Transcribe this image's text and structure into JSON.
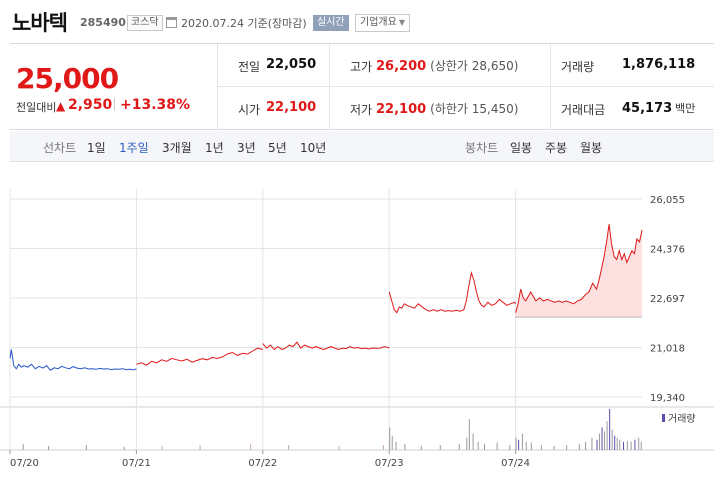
{
  "header": {
    "stock_name": "노바텍",
    "stock_code": "285490",
    "market_badge": "코스닥",
    "date_text": "2020.07.24 기준(장마감)",
    "realtime_label": "실시간",
    "overview_label": "기업개요"
  },
  "summary": {
    "current_price": "25,000",
    "change_label": "전일대비",
    "change_arrow": "▲",
    "change_amount": "2,950",
    "change_pct": "+13.38%",
    "prev_close_label": "전일",
    "prev_close": "22,050",
    "open_label": "시가",
    "open": "22,100",
    "high_label": "고가",
    "high": "26,200",
    "upper_limit": "(상한가 28,650)",
    "low_label": "저가",
    "low": "22,100",
    "lower_limit": "(하한가 15,450)",
    "volume_label": "거래량",
    "volume": "1,876,118",
    "trade_value_label": "거래대금",
    "trade_value": "45,173",
    "trade_value_unit": "백만"
  },
  "tabs": {
    "line_label": "선차트",
    "line_items": [
      "1일",
      "1주일",
      "3개월",
      "1년",
      "3년",
      "5년",
      "10년"
    ],
    "active_line": "1주일",
    "candle_label": "봉차트",
    "candle_items": [
      "일봉",
      "주봉",
      "월봉"
    ]
  },
  "colors": {
    "up": "#e01818",
    "down": "#2456c8",
    "fill": "#fde0e0",
    "volume_up": "#c9a4b9",
    "volume_bar": "#9a9aa0",
    "volume_accent": "#5a4fb0"
  },
  "chart_data": {
    "type": "line",
    "title": "",
    "ylim": [
      19340,
      26055
    ],
    "y_ticks": [
      "26,055",
      "24,376",
      "22,697",
      "21,018",
      "19,340"
    ],
    "y_tick_values": [
      26055,
      24376,
      22697,
      21018,
      19340
    ],
    "x_ticks": [
      "07/20",
      "07/21",
      "07/22",
      "07/23",
      "07/24"
    ],
    "x_range": [
      0,
      5
    ],
    "prev_close": 22050,
    "volume_label": "거래량",
    "grid": true,
    "series": [
      {
        "segment": "07/20",
        "color": "#2456c8",
        "points": [
          [
            0.0,
            20650
          ],
          [
            0.01,
            20950
          ],
          [
            0.03,
            20400
          ],
          [
            0.05,
            20300
          ],
          [
            0.07,
            20450
          ],
          [
            0.09,
            20350
          ],
          [
            0.11,
            20400
          ],
          [
            0.14,
            20350
          ],
          [
            0.17,
            20450
          ],
          [
            0.2,
            20300
          ],
          [
            0.23,
            20380
          ],
          [
            0.26,
            20320
          ],
          [
            0.29,
            20400
          ],
          [
            0.32,
            20250
          ],
          [
            0.35,
            20330
          ],
          [
            0.38,
            20300
          ],
          [
            0.41,
            20380
          ],
          [
            0.44,
            20330
          ],
          [
            0.47,
            20300
          ],
          [
            0.5,
            20370
          ],
          [
            0.53,
            20320
          ],
          [
            0.56,
            20300
          ],
          [
            0.59,
            20330
          ],
          [
            0.62,
            20290
          ],
          [
            0.65,
            20300
          ],
          [
            0.68,
            20280
          ],
          [
            0.71,
            20310
          ],
          [
            0.74,
            20290
          ],
          [
            0.77,
            20300
          ],
          [
            0.8,
            20270
          ],
          [
            0.83,
            20290
          ],
          [
            0.86,
            20280
          ],
          [
            0.89,
            20300
          ],
          [
            0.92,
            20270
          ],
          [
            0.95,
            20280
          ],
          [
            0.98,
            20260
          ],
          [
            1.0,
            20300
          ]
        ]
      },
      {
        "segment": "07/21",
        "color": "#e01818",
        "points": [
          [
            1.0,
            20450
          ],
          [
            1.04,
            20500
          ],
          [
            1.08,
            20420
          ],
          [
            1.12,
            20550
          ],
          [
            1.16,
            20500
          ],
          [
            1.2,
            20600
          ],
          [
            1.24,
            20550
          ],
          [
            1.28,
            20650
          ],
          [
            1.32,
            20600
          ],
          [
            1.36,
            20560
          ],
          [
            1.4,
            20620
          ],
          [
            1.44,
            20520
          ],
          [
            1.48,
            20580
          ],
          [
            1.52,
            20640
          ],
          [
            1.56,
            20600
          ],
          [
            1.6,
            20680
          ],
          [
            1.64,
            20650
          ],
          [
            1.68,
            20700
          ],
          [
            1.72,
            20800
          ],
          [
            1.76,
            20850
          ],
          [
            1.8,
            20750
          ],
          [
            1.84,
            20820
          ],
          [
            1.88,
            20800
          ],
          [
            1.92,
            20900
          ],
          [
            1.96,
            21000
          ],
          [
            2.0,
            20950
          ]
        ]
      },
      {
        "segment": "07/22",
        "color": "#e01818",
        "points": [
          [
            2.0,
            21150
          ],
          [
            2.03,
            21000
          ],
          [
            2.06,
            21100
          ],
          [
            2.09,
            20950
          ],
          [
            2.12,
            21050
          ],
          [
            2.15,
            20950
          ],
          [
            2.18,
            21000
          ],
          [
            2.21,
            21100
          ],
          [
            2.24,
            21050
          ],
          [
            2.27,
            21200
          ],
          [
            2.3,
            21000
          ],
          [
            2.33,
            21100
          ],
          [
            2.36,
            21050
          ],
          [
            2.39,
            21000
          ],
          [
            2.42,
            21050
          ],
          [
            2.45,
            21000
          ],
          [
            2.48,
            20950
          ],
          [
            2.51,
            21000
          ],
          [
            2.54,
            21050
          ],
          [
            2.57,
            21000
          ],
          [
            2.6,
            20950
          ],
          [
            2.63,
            21000
          ],
          [
            2.66,
            20980
          ],
          [
            2.69,
            21050
          ],
          [
            2.72,
            21000
          ],
          [
            2.75,
            21020
          ],
          [
            2.78,
            20980
          ],
          [
            2.81,
            21000
          ],
          [
            2.84,
            20970
          ],
          [
            2.87,
            21000
          ],
          [
            2.9,
            20990
          ],
          [
            2.93,
            21000
          ],
          [
            2.96,
            21050
          ],
          [
            2.99,
            21020
          ],
          [
            3.0,
            21000
          ]
        ]
      },
      {
        "segment": "07/23",
        "color": "#e01818",
        "points": [
          [
            3.0,
            22900
          ],
          [
            3.02,
            22600
          ],
          [
            3.04,
            22300
          ],
          [
            3.06,
            22200
          ],
          [
            3.08,
            22400
          ],
          [
            3.1,
            22350
          ],
          [
            3.12,
            22500
          ],
          [
            3.14,
            22450
          ],
          [
            3.17,
            22400
          ],
          [
            3.2,
            22350
          ],
          [
            3.23,
            22500
          ],
          [
            3.26,
            22400
          ],
          [
            3.29,
            22300
          ],
          [
            3.32,
            22250
          ],
          [
            3.35,
            22300
          ],
          [
            3.38,
            22250
          ],
          [
            3.41,
            22300
          ],
          [
            3.44,
            22250
          ],
          [
            3.47,
            22270
          ],
          [
            3.5,
            22250
          ],
          [
            3.53,
            22280
          ],
          [
            3.56,
            22250
          ],
          [
            3.59,
            22300
          ],
          [
            3.61,
            22600
          ],
          [
            3.63,
            23100
          ],
          [
            3.65,
            23550
          ],
          [
            3.67,
            23300
          ],
          [
            3.69,
            22900
          ],
          [
            3.71,
            22600
          ],
          [
            3.73,
            22450
          ],
          [
            3.75,
            22400
          ],
          [
            3.78,
            22550
          ],
          [
            3.81,
            22450
          ],
          [
            3.84,
            22500
          ],
          [
            3.87,
            22650
          ],
          [
            3.9,
            22550
          ],
          [
            3.93,
            22450
          ],
          [
            3.96,
            22500
          ],
          [
            3.99,
            22550
          ],
          [
            4.0,
            22500
          ]
        ]
      },
      {
        "segment": "07/24",
        "color": "#e01818",
        "points": [
          [
            4.0,
            22200
          ],
          [
            4.02,
            22500
          ],
          [
            4.04,
            23000
          ],
          [
            4.06,
            22700
          ],
          [
            4.08,
            22600
          ],
          [
            4.1,
            22750
          ],
          [
            4.12,
            22900
          ],
          [
            4.14,
            22750
          ],
          [
            4.16,
            22600
          ],
          [
            4.19,
            22700
          ],
          [
            4.22,
            22600
          ],
          [
            4.25,
            22650
          ],
          [
            4.28,
            22600
          ],
          [
            4.31,
            22550
          ],
          [
            4.34,
            22600
          ],
          [
            4.37,
            22550
          ],
          [
            4.4,
            22600
          ],
          [
            4.43,
            22550
          ],
          [
            4.46,
            22500
          ],
          [
            4.49,
            22600
          ],
          [
            4.52,
            22650
          ],
          [
            4.55,
            22800
          ],
          [
            4.58,
            22900
          ],
          [
            4.61,
            23200
          ],
          [
            4.64,
            23000
          ],
          [
            4.66,
            23300
          ],
          [
            4.68,
            23700
          ],
          [
            4.7,
            24100
          ],
          [
            4.72,
            24600
          ],
          [
            4.74,
            25200
          ],
          [
            4.76,
            24500
          ],
          [
            4.78,
            24100
          ],
          [
            4.8,
            24000
          ],
          [
            4.82,
            24300
          ],
          [
            4.84,
            24000
          ],
          [
            4.86,
            24200
          ],
          [
            4.88,
            23900
          ],
          [
            4.9,
            24100
          ],
          [
            4.92,
            24300
          ],
          [
            4.94,
            24200
          ],
          [
            4.96,
            24700
          ],
          [
            4.98,
            24600
          ],
          [
            5.0,
            25000
          ]
        ]
      }
    ],
    "volume": [
      {
        "x": 0.1,
        "v": 0.15,
        "c": "#9a9aa0"
      },
      {
        "x": 0.3,
        "v": 0.1,
        "c": "#9a9aa0"
      },
      {
        "x": 0.6,
        "v": 0.12,
        "c": "#9a9aa0"
      },
      {
        "x": 0.9,
        "v": 0.08,
        "c": "#9a9aa0"
      },
      {
        "x": 1.2,
        "v": 0.1,
        "c": "#c9a4b9"
      },
      {
        "x": 1.5,
        "v": 0.12,
        "c": "#c9a4b9"
      },
      {
        "x": 1.9,
        "v": 0.15,
        "c": "#c9a4b9"
      },
      {
        "x": 2.2,
        "v": 0.12,
        "c": "#c9a4b9"
      },
      {
        "x": 2.6,
        "v": 0.1,
        "c": "#c9a4b9"
      },
      {
        "x": 2.95,
        "v": 0.12,
        "c": "#c9a4b9"
      },
      {
        "x": 3.0,
        "v": 0.55,
        "c": "#9a9aa0"
      },
      {
        "x": 3.02,
        "v": 0.35,
        "c": "#9a9aa0"
      },
      {
        "x": 3.05,
        "v": 0.2,
        "c": "#9a9aa0"
      },
      {
        "x": 3.12,
        "v": 0.15,
        "c": "#9a9aa0"
      },
      {
        "x": 3.25,
        "v": 0.1,
        "c": "#9a9aa0"
      },
      {
        "x": 3.4,
        "v": 0.12,
        "c": "#9a9aa0"
      },
      {
        "x": 3.55,
        "v": 0.15,
        "c": "#9a9aa0"
      },
      {
        "x": 3.61,
        "v": 0.3,
        "c": "#9a9aa0"
      },
      {
        "x": 3.63,
        "v": 0.75,
        "c": "#9a9aa0"
      },
      {
        "x": 3.66,
        "v": 0.4,
        "c": "#9a9aa0"
      },
      {
        "x": 3.7,
        "v": 0.2,
        "c": "#9a9aa0"
      },
      {
        "x": 3.75,
        "v": 0.15,
        "c": "#9a9aa0"
      },
      {
        "x": 3.85,
        "v": 0.18,
        "c": "#9a9aa0"
      },
      {
        "x": 3.95,
        "v": 0.12,
        "c": "#9a9aa0"
      },
      {
        "x": 4.0,
        "v": 0.3,
        "c": "#9a9aa0"
      },
      {
        "x": 4.02,
        "v": 0.25,
        "c": "#5a4fb0"
      },
      {
        "x": 4.05,
        "v": 0.4,
        "c": "#9a9aa0"
      },
      {
        "x": 4.08,
        "v": 0.2,
        "c": "#9a9aa0"
      },
      {
        "x": 4.12,
        "v": 0.18,
        "c": "#9a9aa0"
      },
      {
        "x": 4.2,
        "v": 0.12,
        "c": "#9a9aa0"
      },
      {
        "x": 4.3,
        "v": 0.1,
        "c": "#9a9aa0"
      },
      {
        "x": 4.4,
        "v": 0.12,
        "c": "#9a9aa0"
      },
      {
        "x": 4.5,
        "v": 0.15,
        "c": "#9a9aa0"
      },
      {
        "x": 4.55,
        "v": 0.2,
        "c": "#9a9aa0"
      },
      {
        "x": 4.6,
        "v": 0.3,
        "c": "#9a9aa0"
      },
      {
        "x": 4.64,
        "v": 0.25,
        "c": "#5a4fb0"
      },
      {
        "x": 4.66,
        "v": 0.4,
        "c": "#9a9aa0"
      },
      {
        "x": 4.68,
        "v": 0.55,
        "c": "#5a4fb0"
      },
      {
        "x": 4.7,
        "v": 0.45,
        "c": "#9a9aa0"
      },
      {
        "x": 4.72,
        "v": 0.7,
        "c": "#9a9aa0"
      },
      {
        "x": 4.74,
        "v": 1.0,
        "c": "#5a4fb0"
      },
      {
        "x": 4.76,
        "v": 0.5,
        "c": "#9a9aa0"
      },
      {
        "x": 4.78,
        "v": 0.35,
        "c": "#5a4fb0"
      },
      {
        "x": 4.8,
        "v": 0.3,
        "c": "#9a9aa0"
      },
      {
        "x": 4.82,
        "v": 0.25,
        "c": "#9a9aa0"
      },
      {
        "x": 4.85,
        "v": 0.2,
        "c": "#5a4fb0"
      },
      {
        "x": 4.88,
        "v": 0.22,
        "c": "#9a9aa0"
      },
      {
        "x": 4.91,
        "v": 0.2,
        "c": "#9a9aa0"
      },
      {
        "x": 4.94,
        "v": 0.25,
        "c": "#5a4fb0"
      },
      {
        "x": 4.97,
        "v": 0.3,
        "c": "#9a9aa0"
      },
      {
        "x": 4.99,
        "v": 0.2,
        "c": "#9a9aa0"
      }
    ]
  }
}
